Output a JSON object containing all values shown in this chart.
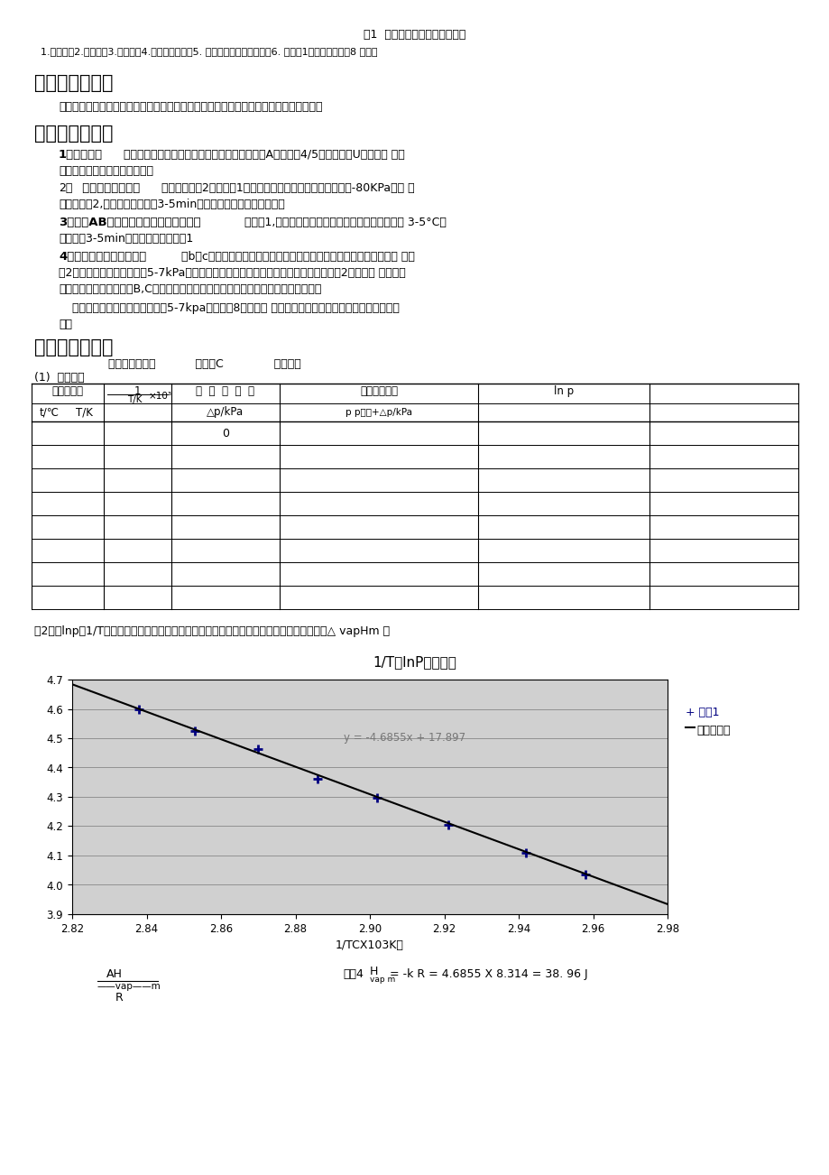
{
  "page_title": "图1 液体饱和蒸气压测定装置图",
  "subtitle": "1.恒温槽；2.冷凝管；3.压力计；4.缓冲瓶平衡阀；5. 平衡阀２（通大气用）；6. 平衡阀1（抽真空用）；8 平衡管",
  "chart_title": "1/T与lnP的关系图",
  "chart_xlabel": "1/TCX103K）",
  "chart_xlim": [
    2.82,
    2.98
  ],
  "chart_ylim": [
    3.9,
    4.7
  ],
  "chart_xticks": [
    2.82,
    2.84,
    2.86,
    2.88,
    2.9,
    2.92,
    2.94,
    2.96,
    2.98
  ],
  "chart_yticks": [
    3.9,
    4.0,
    4.1,
    4.2,
    4.3,
    4.4,
    4.5,
    4.6,
    4.7
  ],
  "data_x": [
    2.838,
    2.853,
    2.87,
    2.886,
    2.902,
    2.921,
    2.942,
    2.958
  ],
  "data_y": [
    4.6,
    4.524,
    4.462,
    4.363,
    4.296,
    4.205,
    4.108,
    4.036
  ],
  "trendline_label": "y = -4.6855x + 17.897",
  "legend_series": "系列1",
  "legend_linear": "线性（系列",
  "slope": -4.6855,
  "intercept": 17.897,
  "bg_color": "#d0d0d0",
  "marker_color": "#000080",
  "trendline_color": "#000000",
  "eq_color": "#888888"
}
